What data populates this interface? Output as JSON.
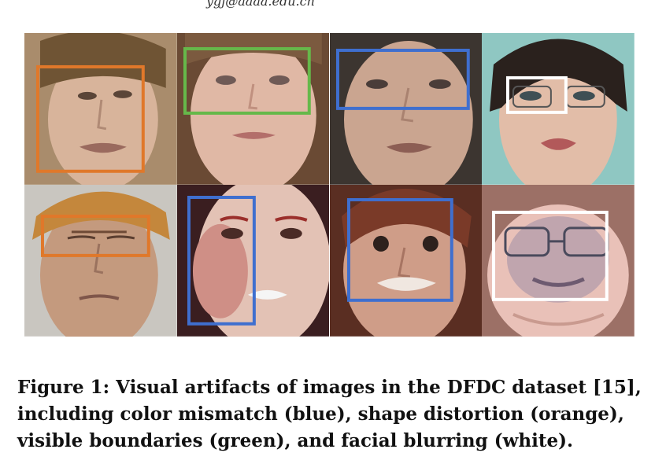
{
  "header_fragment": "ygj@aaaa.edu.cn",
  "figure": {
    "caption": "Figure 1: Visual artifacts of images in the DFDC dataset [15], including color mismatch (blue), shape distortion (orange), visible boundaries (green), and facial blurring (white).",
    "colors": {
      "blue": "#3f6fcf",
      "orange": "#e0782a",
      "green": "#66b84a",
      "white": "#ffffff"
    },
    "panels": [
      {
        "row": 1,
        "col": 1,
        "artifact": "orange"
      },
      {
        "row": 1,
        "col": 2,
        "artifact": "green"
      },
      {
        "row": 1,
        "col": 3,
        "artifact": "blue"
      },
      {
        "row": 1,
        "col": 4,
        "artifact": "white"
      },
      {
        "row": 2,
        "col": 1,
        "artifact": "orange"
      },
      {
        "row": 2,
        "col": 2,
        "artifact": "blue"
      },
      {
        "row": 2,
        "col": 3,
        "artifact": "blue"
      },
      {
        "row": 2,
        "col": 4,
        "artifact": "white"
      }
    ]
  }
}
